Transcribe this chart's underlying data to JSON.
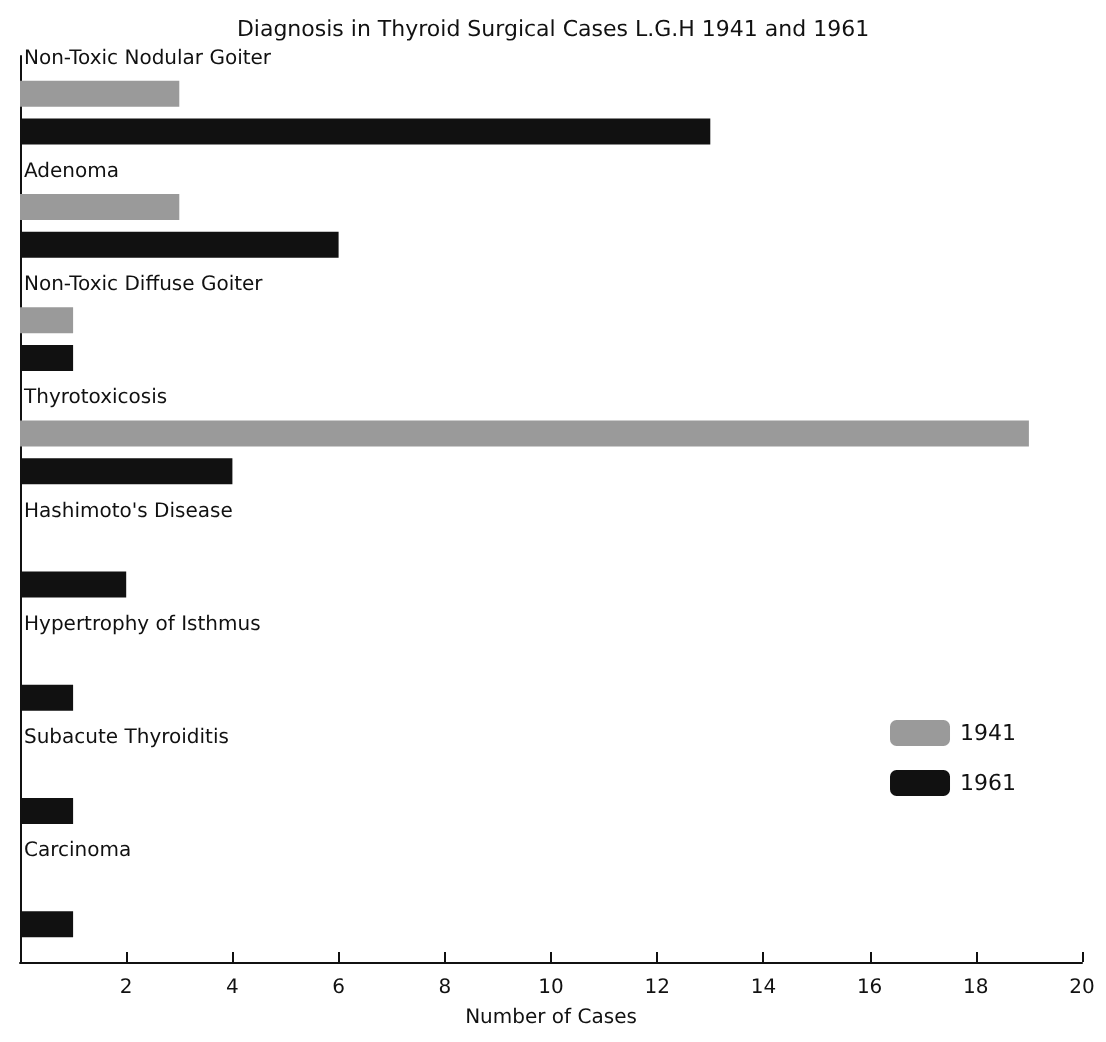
{
  "chart_data": {
    "type": "bar",
    "orientation": "horizontal",
    "title": "Diagnosis in Thyroid Surgical Cases L.G.H 1941 and 1961",
    "xlabel": "Number of Cases",
    "categories": [
      "Non-Toxic Nodular Goiter",
      "Adenoma",
      "Non-Toxic Diffuse Goiter",
      "Thyrotoxicosis",
      "Hashimoto's Disease",
      "Hypertrophy of Isthmus",
      "Subacute Thyroiditis",
      "Carcinoma"
    ],
    "series": [
      {
        "name": "1941",
        "color": "#9a9a9a",
        "values": [
          3,
          3,
          1,
          19,
          null,
          null,
          null,
          null
        ]
      },
      {
        "name": "1961",
        "color": "#111111",
        "values": [
          13,
          6,
          1,
          4,
          2,
          1,
          1,
          1
        ]
      }
    ],
    "xlim": [
      0,
      20
    ],
    "xticks": [
      {
        "value": 0,
        "label": null
      },
      2,
      4,
      6,
      8,
      10,
      12,
      14,
      16,
      18,
      20
    ],
    "grid": false,
    "legend": "right"
  }
}
